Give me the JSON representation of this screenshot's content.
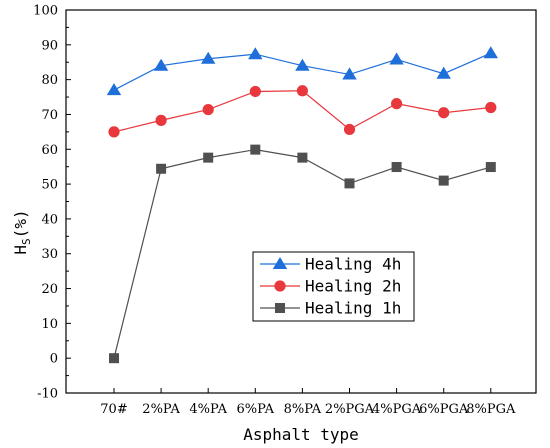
{
  "chart_data": {
    "type": "line",
    "title": "",
    "xlabel": "Asphalt type",
    "ylabel_main": "H",
    "ylabel_sub": "S",
    "ylabel_unit": "(%)",
    "categories": [
      "70#",
      "2%PA",
      "4%PA",
      "6%PA",
      "8%PA",
      "2%PGA",
      "4%PGA",
      "6%PGA",
      "8%PGA"
    ],
    "ylim": [
      -10,
      100
    ],
    "yticks": [
      -10,
      0,
      10,
      20,
      30,
      40,
      50,
      60,
      70,
      80,
      90,
      100
    ],
    "grid": false,
    "legend_position": "center",
    "series": [
      {
        "name": "Healing 4h",
        "color": "#1f6fdb",
        "marker": "triangle",
        "values": [
          77.0,
          84.0,
          86.0,
          87.3,
          84.0,
          81.5,
          85.8,
          81.7,
          87.6
        ]
      },
      {
        "name": "Healing 2h",
        "color": "#e8383d",
        "marker": "circle",
        "values": [
          65.0,
          68.3,
          71.4,
          76.6,
          76.8,
          65.7,
          73.1,
          70.5,
          72.0
        ]
      },
      {
        "name": "Healing 1h",
        "color": "#505050",
        "marker": "square",
        "values": [
          0.0,
          54.4,
          57.6,
          59.9,
          57.6,
          50.2,
          54.9,
          51.0,
          54.9
        ]
      }
    ]
  }
}
